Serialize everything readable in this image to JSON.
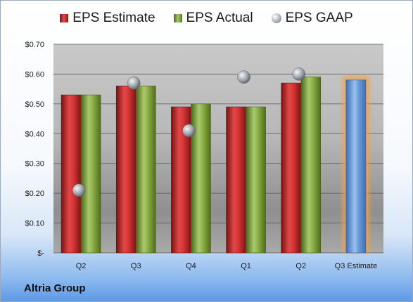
{
  "legend": {
    "estimate": "EPS Estimate",
    "actual": "EPS Actual",
    "gaap": "EPS GAAP"
  },
  "company": "Altria Group",
  "colors": {
    "estimate": "#d93636",
    "actual": "#8fb04a",
    "gaap": "#a7acb3",
    "projection": "#6fa0dc",
    "projection_glow": "#f2a24a"
  },
  "chart_data": {
    "type": "bar",
    "categories": [
      "Q2",
      "Q3",
      "Q4",
      "Q1",
      "Q2",
      "Q3 Estimate"
    ],
    "series": [
      {
        "name": "EPS Estimate",
        "values": [
          0.53,
          0.56,
          0.49,
          0.49,
          0.57,
          0.58
        ]
      },
      {
        "name": "EPS Actual",
        "values": [
          0.53,
          0.56,
          0.5,
          0.49,
          0.59,
          null
        ]
      },
      {
        "name": "EPS GAAP",
        "values": [
          0.21,
          0.57,
          0.41,
          0.59,
          0.6,
          null
        ]
      }
    ],
    "yticks": [
      "$-",
      "$0.10",
      "$0.20",
      "$0.30",
      "$0.40",
      "$0.50",
      "$0.60",
      "$0.70"
    ],
    "ylim": [
      0,
      0.7
    ],
    "grid": true,
    "legend_position": "top"
  }
}
